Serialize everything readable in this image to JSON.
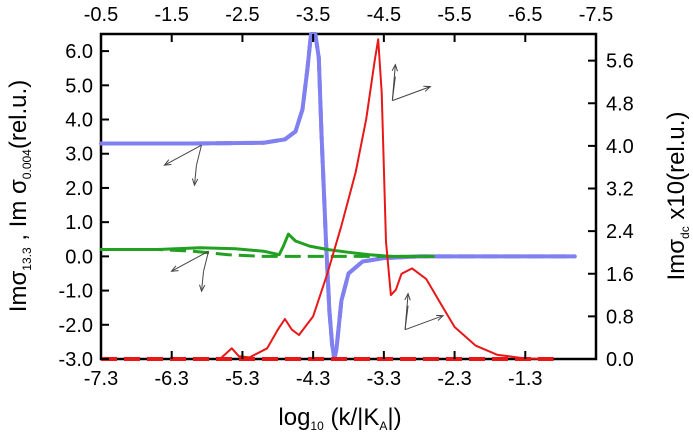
{
  "chart_data": {
    "type": "line",
    "xlabel": "log10 (k/|KA|)",
    "ylabel_left": "Imσ13.3 , Imσ0.004(rel.u.)",
    "ylabel_right": "Imσdc x10(rel.u.)",
    "xlim": [
      -7.3,
      -0.3
    ],
    "top_xlim": [
      -0.5,
      -7.5
    ],
    "ylim_left": [
      -3.0,
      6.5
    ],
    "ylim_right": [
      0.0,
      6.1
    ],
    "x_ticks": [
      {
        "value": -7.3,
        "label": "-7.3"
      },
      {
        "value": -6.3,
        "label": "-6.3"
      },
      {
        "value": -5.3,
        "label": "-5.3"
      },
      {
        "value": -4.3,
        "label": "-4.3"
      },
      {
        "value": -3.3,
        "label": "-3.3"
      },
      {
        "value": -2.3,
        "label": "-2.3"
      },
      {
        "value": -1.3,
        "label": "-1.3"
      }
    ],
    "top_x_ticks": [
      {
        "value": -0.5,
        "label": "-0.5"
      },
      {
        "value": -1.5,
        "label": "-1.5"
      },
      {
        "value": -2.5,
        "label": "-2.5"
      },
      {
        "value": -3.5,
        "label": "-3.5"
      },
      {
        "value": -4.5,
        "label": "-4.5"
      },
      {
        "value": -5.5,
        "label": "-5.5"
      },
      {
        "value": -6.5,
        "label": "-6.5"
      },
      {
        "value": -7.5,
        "label": "-7.5"
      }
    ],
    "left_ticks": [
      {
        "value": 6.0,
        "label": "6.0"
      },
      {
        "value": 5.0,
        "label": "5.0"
      },
      {
        "value": 4.0,
        "label": "4.0"
      },
      {
        "value": 3.0,
        "label": "3.0"
      },
      {
        "value": 2.0,
        "label": "2.0"
      },
      {
        "value": 1.0,
        "label": "1.0"
      },
      {
        "value": 0.0,
        "label": "0.0"
      },
      {
        "value": -1.0,
        "label": "-1.0"
      },
      {
        "value": -2.0,
        "label": "-2.0"
      },
      {
        "value": -3.0,
        "label": "-3.0"
      }
    ],
    "right_ticks": [
      {
        "value": 5.6,
        "label": "5.6"
      },
      {
        "value": 4.8,
        "label": "4.8"
      },
      {
        "value": 4.0,
        "label": "4.0"
      },
      {
        "value": 3.2,
        "label": "3.2"
      },
      {
        "value": 2.4,
        "label": "2.4"
      },
      {
        "value": 1.6,
        "label": "1.6"
      },
      {
        "value": 0.8,
        "label": "0.8"
      },
      {
        "value": 0.0,
        "label": "0.0"
      }
    ],
    "grid": false,
    "series": [
      {
        "axis": "left",
        "color": "#8080f0",
        "dash": "solid",
        "width": 4,
        "points": [
          [
            -7.3,
            3.3
          ],
          [
            -6.0,
            3.3
          ],
          [
            -5.0,
            3.32
          ],
          [
            -4.7,
            3.42
          ],
          [
            -4.55,
            3.65
          ],
          [
            -4.45,
            4.3
          ],
          [
            -4.38,
            5.5
          ],
          [
            -4.33,
            6.5
          ],
          [
            -4.27,
            6.5
          ],
          [
            -4.22,
            5.8
          ],
          [
            -4.18,
            3.5
          ],
          [
            -4.12,
            0.5
          ],
          [
            -4.07,
            -1.6
          ],
          [
            -4.03,
            -2.6
          ],
          [
            -4.0,
            -3.0
          ],
          [
            -3.97,
            -2.7
          ],
          [
            -3.9,
            -1.3
          ],
          [
            -3.8,
            -0.5
          ],
          [
            -3.6,
            -0.15
          ],
          [
            -3.3,
            -0.05
          ],
          [
            -2.8,
            0.0
          ],
          [
            -1.5,
            0.0
          ],
          [
            -0.6,
            0.0
          ]
        ]
      },
      {
        "axis": "left",
        "color": "#8080f0",
        "dash": "dashed",
        "width": 4,
        "points": [
          [
            -7.3,
            3.3
          ],
          [
            -6.0,
            3.3
          ],
          [
            -5.0,
            3.32
          ],
          [
            -4.7,
            3.42
          ],
          [
            -4.55,
            3.65
          ],
          [
            -4.45,
            4.3
          ],
          [
            -4.38,
            5.5
          ],
          [
            -4.33,
            6.5
          ],
          [
            -4.27,
            6.5
          ],
          [
            -4.22,
            5.8
          ],
          [
            -4.18,
            3.5
          ],
          [
            -4.12,
            0.5
          ],
          [
            -4.07,
            -1.6
          ],
          [
            -4.03,
            -2.6
          ],
          [
            -4.0,
            -3.0
          ],
          [
            -3.97,
            -2.7
          ],
          [
            -3.9,
            -1.3
          ],
          [
            -3.8,
            -0.5
          ],
          [
            -3.6,
            -0.15
          ],
          [
            -3.3,
            -0.05
          ],
          [
            -2.8,
            0.0
          ],
          [
            -1.5,
            0.0
          ],
          [
            -0.6,
            0.0
          ]
        ]
      },
      {
        "axis": "left",
        "color": "#22a022",
        "dash": "solid",
        "width": 3,
        "points": [
          [
            -7.3,
            0.2
          ],
          [
            -6.5,
            0.2
          ],
          [
            -5.9,
            0.25
          ],
          [
            -5.4,
            0.22
          ],
          [
            -5.0,
            0.15
          ],
          [
            -4.78,
            0.05
          ],
          [
            -4.72,
            0.3
          ],
          [
            -4.65,
            0.65
          ],
          [
            -4.55,
            0.45
          ],
          [
            -4.35,
            0.3
          ],
          [
            -4.1,
            0.2
          ],
          [
            -3.8,
            0.12
          ],
          [
            -3.5,
            0.05
          ],
          [
            -3.2,
            0.0
          ],
          [
            -2.6,
            0.0
          ]
        ]
      },
      {
        "axis": "left",
        "color": "#22a022",
        "dash": "dashed",
        "width": 3,
        "points": [
          [
            -7.3,
            0.2
          ],
          [
            -6.5,
            0.2
          ],
          [
            -6.0,
            0.15
          ],
          [
            -5.5,
            0.05
          ],
          [
            -5.0,
            0.0
          ],
          [
            -4.3,
            0.0
          ],
          [
            -3.5,
            0.0
          ],
          [
            -2.6,
            0.0
          ]
        ]
      },
      {
        "axis": "right",
        "color": "#e81818",
        "dash": "solid",
        "width": 2,
        "points": [
          [
            -5.6,
            0.02
          ],
          [
            -5.45,
            0.2
          ],
          [
            -5.35,
            0.05
          ],
          [
            -5.2,
            0.03
          ],
          [
            -4.95,
            0.2
          ],
          [
            -4.8,
            0.55
          ],
          [
            -4.7,
            0.75
          ],
          [
            -4.6,
            0.55
          ],
          [
            -4.5,
            0.45
          ],
          [
            -4.3,
            0.8
          ],
          [
            -4.1,
            1.6
          ],
          [
            -3.9,
            2.5
          ],
          [
            -3.7,
            3.5
          ],
          [
            -3.55,
            4.5
          ],
          [
            -3.43,
            5.6
          ],
          [
            -3.38,
            6.0
          ],
          [
            -3.33,
            5.0
          ],
          [
            -3.27,
            2.2
          ],
          [
            -3.2,
            1.2
          ],
          [
            -3.13,
            1.3
          ],
          [
            -3.05,
            1.6
          ],
          [
            -2.9,
            1.7
          ],
          [
            -2.7,
            1.5
          ],
          [
            -2.5,
            1.05
          ],
          [
            -2.3,
            0.6
          ],
          [
            -2.0,
            0.25
          ],
          [
            -1.7,
            0.08
          ],
          [
            -1.3,
            0.01
          ],
          [
            -1.0,
            0.0
          ]
        ]
      },
      {
        "axis": "right",
        "color": "#e81818",
        "dash": "dashed",
        "width": 4,
        "points": [
          [
            -7.3,
            0.0
          ],
          [
            -5.3,
            0.0
          ],
          [
            -3.3,
            0.0
          ],
          [
            -0.9,
            0.0
          ]
        ]
      }
    ],
    "annotations": [
      {
        "type": "arrow-group",
        "origin": [
          -5.95,
          3.25
        ],
        "axis": "left"
      },
      {
        "type": "arrow-group",
        "origin": [
          -5.85,
          0.15
        ],
        "axis": "left"
      },
      {
        "type": "arrow-group",
        "origin": [
          -3.18,
          4.85
        ],
        "axis": "right"
      },
      {
        "type": "arrow-group",
        "origin": [
          -3.0,
          0.55
        ],
        "axis": "right"
      }
    ]
  }
}
